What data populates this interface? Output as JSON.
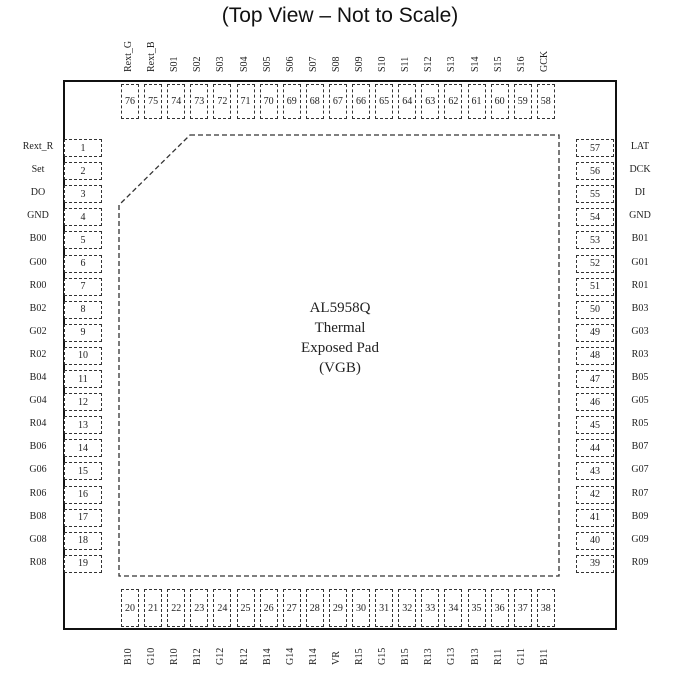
{
  "title": "(Top View – Not to Scale)",
  "pad": {
    "lines": [
      "AL5958Q",
      "Thermal",
      "Exposed Pad",
      "(VGB)"
    ]
  },
  "left_pins": [
    {
      "num": "1",
      "name": "Rext_R"
    },
    {
      "num": "2",
      "name": "Set"
    },
    {
      "num": "3",
      "name": "DO"
    },
    {
      "num": "4",
      "name": "GND"
    },
    {
      "num": "5",
      "name": "B00"
    },
    {
      "num": "6",
      "name": "G00"
    },
    {
      "num": "7",
      "name": "R00"
    },
    {
      "num": "8",
      "name": "B02"
    },
    {
      "num": "9",
      "name": "G02"
    },
    {
      "num": "10",
      "name": "R02"
    },
    {
      "num": "11",
      "name": "B04"
    },
    {
      "num": "12",
      "name": "G04"
    },
    {
      "num": "13",
      "name": "R04"
    },
    {
      "num": "14",
      "name": "B06"
    },
    {
      "num": "15",
      "name": "G06"
    },
    {
      "num": "16",
      "name": "R06"
    },
    {
      "num": "17",
      "name": "B08"
    },
    {
      "num": "18",
      "name": "G08"
    },
    {
      "num": "19",
      "name": "R08"
    }
  ],
  "bottom_pins": [
    {
      "num": "20",
      "name": "B10"
    },
    {
      "num": "21",
      "name": "G10"
    },
    {
      "num": "22",
      "name": "R10"
    },
    {
      "num": "23",
      "name": "B12"
    },
    {
      "num": "24",
      "name": "G12"
    },
    {
      "num": "25",
      "name": "R12"
    },
    {
      "num": "26",
      "name": "B14"
    },
    {
      "num": "27",
      "name": "G14"
    },
    {
      "num": "28",
      "name": "R14"
    },
    {
      "num": "29",
      "name": "VR"
    },
    {
      "num": "30",
      "name": "R15"
    },
    {
      "num": "31",
      "name": "G15"
    },
    {
      "num": "32",
      "name": "B15"
    },
    {
      "num": "33",
      "name": "R13"
    },
    {
      "num": "34",
      "name": "G13"
    },
    {
      "num": "35",
      "name": "B13"
    },
    {
      "num": "36",
      "name": "R11"
    },
    {
      "num": "37",
      "name": "G11"
    },
    {
      "num": "38",
      "name": "B11"
    }
  ],
  "right_pins": [
    {
      "num": "57",
      "name": "LAT"
    },
    {
      "num": "56",
      "name": "DCK"
    },
    {
      "num": "55",
      "name": "DI"
    },
    {
      "num": "54",
      "name": "GND"
    },
    {
      "num": "53",
      "name": "B01"
    },
    {
      "num": "52",
      "name": "G01"
    },
    {
      "num": "51",
      "name": "R01"
    },
    {
      "num": "50",
      "name": "B03"
    },
    {
      "num": "49",
      "name": "G03"
    },
    {
      "num": "48",
      "name": "R03"
    },
    {
      "num": "47",
      "name": "B05"
    },
    {
      "num": "46",
      "name": "G05"
    },
    {
      "num": "45",
      "name": "R05"
    },
    {
      "num": "44",
      "name": "B07"
    },
    {
      "num": "43",
      "name": "G07"
    },
    {
      "num": "42",
      "name": "R07"
    },
    {
      "num": "41",
      "name": "B09"
    },
    {
      "num": "40",
      "name": "G09"
    },
    {
      "num": "39",
      "name": "R09"
    }
  ],
  "top_pins": [
    {
      "num": "76",
      "name": "Rext_G"
    },
    {
      "num": "75",
      "name": "Rext_B"
    },
    {
      "num": "74",
      "name": "S01"
    },
    {
      "num": "73",
      "name": "S02"
    },
    {
      "num": "72",
      "name": "S03"
    },
    {
      "num": "71",
      "name": "S04"
    },
    {
      "num": "70",
      "name": "S05"
    },
    {
      "num": "69",
      "name": "S06"
    },
    {
      "num": "68",
      "name": "S07"
    },
    {
      "num": "67",
      "name": "S08"
    },
    {
      "num": "66",
      "name": "S09"
    },
    {
      "num": "65",
      "name": "S10"
    },
    {
      "num": "64",
      "name": "S11"
    },
    {
      "num": "63",
      "name": "S12"
    },
    {
      "num": "62",
      "name": "S13"
    },
    {
      "num": "61",
      "name": "S14"
    },
    {
      "num": "60",
      "name": "S15"
    },
    {
      "num": "59",
      "name": "S16"
    },
    {
      "num": "58",
      "name": "GCK"
    }
  ]
}
